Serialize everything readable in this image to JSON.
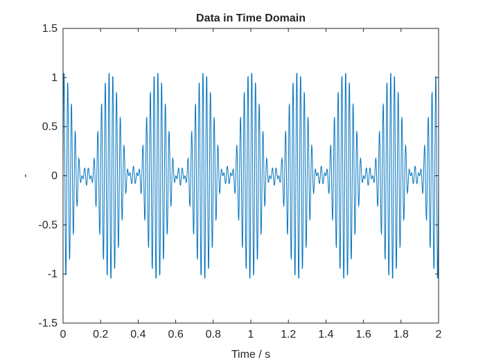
{
  "chart_data": {
    "type": "line",
    "title": "Data in Time Domain",
    "xlabel": "Time / s",
    "ylabel": "-",
    "xlim": [
      0,
      2
    ],
    "ylim": [
      -1.5,
      1.5
    ],
    "xticks": [
      "0",
      "0.2",
      "0.4",
      "0.6",
      "0.8",
      "1",
      "1.2",
      "1.4",
      "1.6",
      "1.8",
      "2"
    ],
    "yticks": [
      "-1.5",
      "-1",
      "-0.5",
      "0",
      "0.5",
      "1",
      "1.5"
    ],
    "grid": false,
    "box": true,
    "series": [
      {
        "color": "#0072BD",
        "description": "Sum of sinusoids 0.5*sin(2*pi*50*t) + 0.3*sin(2*pi*54*t) + 0.3*sin(2*pi*46*t), plotted 0 to 2 s",
        "components": [
          {
            "amplitude": 0.5,
            "frequency_hz": 50
          },
          {
            "amplitude": 0.3,
            "frequency_hz": 54
          },
          {
            "amplitude": 0.3,
            "frequency_hz": 46
          }
        ],
        "sample_rate_hz": 500
      }
    ]
  }
}
